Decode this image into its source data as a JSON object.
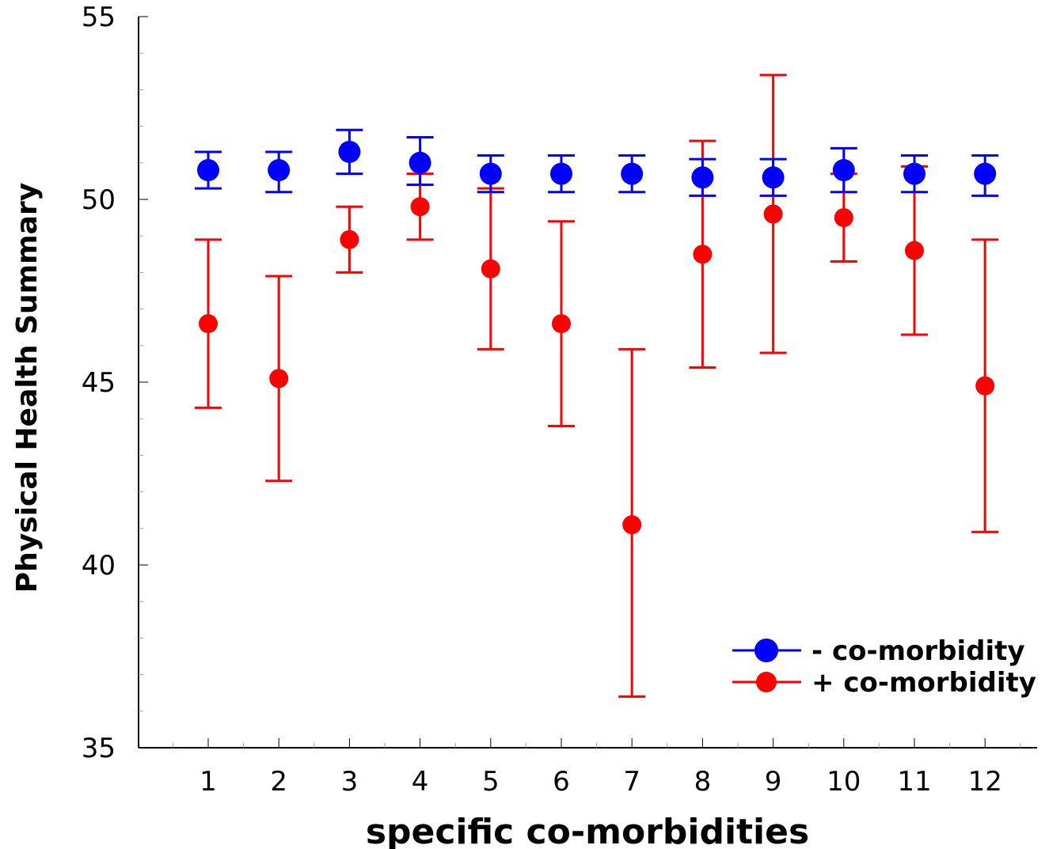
{
  "chart_data": {
    "type": "scatter",
    "xlabel": "specific co-morbidities",
    "ylabel": "Physical Health Summary",
    "xlim": [
      0,
      12.7
    ],
    "ylim": [
      35,
      55
    ],
    "x_ticks": [
      "1",
      "2",
      "3",
      "4",
      "5",
      "6",
      "7",
      "8",
      "9",
      "10",
      "11",
      "12"
    ],
    "y_ticks": [
      "35",
      "40",
      "45",
      "50",
      "55"
    ],
    "grid": false,
    "legend_position": "bottom-right",
    "series": [
      {
        "name": "- co-morbidity",
        "color": "#0000ff",
        "x": [
          1,
          2,
          3,
          4,
          5,
          6,
          7,
          8,
          9,
          10,
          11,
          12
        ],
        "y": [
          50.8,
          50.8,
          51.3,
          51.0,
          50.7,
          50.7,
          50.7,
          50.6,
          50.6,
          50.8,
          50.7,
          50.7
        ],
        "err_low": [
          50.3,
          50.2,
          50.7,
          50.4,
          50.2,
          50.2,
          50.2,
          50.1,
          50.1,
          50.2,
          50.2,
          50.1
        ],
        "err_high": [
          51.3,
          51.3,
          51.9,
          51.7,
          51.2,
          51.2,
          51.2,
          51.1,
          51.1,
          51.4,
          51.2,
          51.2
        ]
      },
      {
        "name": "+ co-morbidity",
        "color": "#ff0000",
        "x": [
          1,
          2,
          3,
          4,
          5,
          6,
          7,
          8,
          9,
          10,
          11,
          12
        ],
        "y": [
          46.6,
          45.1,
          48.9,
          49.8,
          48.1,
          46.6,
          41.1,
          48.5,
          49.6,
          49.5,
          48.6,
          44.9
        ],
        "err_low": [
          44.3,
          42.3,
          48.0,
          48.9,
          45.9,
          43.8,
          36.4,
          45.4,
          45.8,
          48.3,
          46.3,
          40.9
        ],
        "err_high": [
          48.9,
          47.9,
          49.8,
          50.7,
          50.3,
          49.4,
          45.9,
          51.6,
          53.4,
          50.7,
          50.9,
          48.9
        ]
      }
    ]
  }
}
